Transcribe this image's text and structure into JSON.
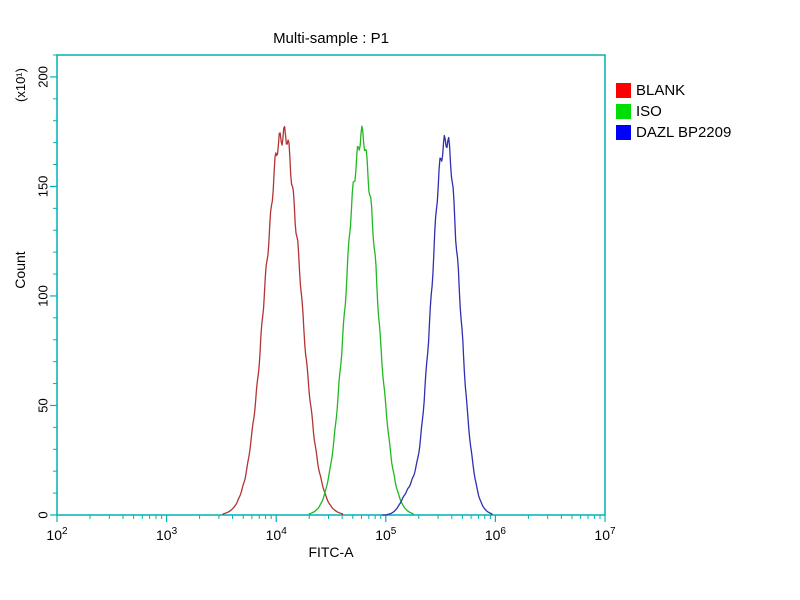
{
  "chart_data": {
    "type": "line",
    "subtype": "flow-cytometry-histogram",
    "title": "Multi-sample : P1",
    "xlabel": "FITC-A",
    "ylabel": "Count",
    "y_unit_label": "(x10¹)",
    "x_scale": "log10",
    "xlim": [
      100,
      10000000
    ],
    "x_tick_exponents": [
      2,
      3,
      4,
      5,
      6,
      7
    ],
    "ylim": [
      0,
      210
    ],
    "y_ticks": [
      0,
      50,
      100,
      150,
      200
    ],
    "y_minor_step": 10,
    "grid": "off",
    "axis_color": "#00b2b2",
    "text_color": "#000000",
    "legend": {
      "position": "right",
      "entries": [
        "BLANK",
        "ISO",
        "DAZL BP2209"
      ]
    },
    "series": [
      {
        "name": "BLANK",
        "legend_color": "#ff0000",
        "line_color": "#b23434",
        "peak_x": 11500,
        "peak_count": 175,
        "log_sigma": 0.16
      },
      {
        "name": "ISO",
        "legend_color": "#00dd00",
        "line_color": "#22b822",
        "peak_x": 60000,
        "peak_count": 172,
        "log_sigma": 0.14
      },
      {
        "name": "DAZL BP2209",
        "legend_color": "#0000ff",
        "line_color": "#2f2fb2",
        "peak_x": 350000,
        "peak_count": 172,
        "log_sigma": 0.125,
        "shoulder": {
          "peak_x": 160000,
          "peak_count": 8,
          "log_sigma": 0.07
        }
      }
    ]
  }
}
